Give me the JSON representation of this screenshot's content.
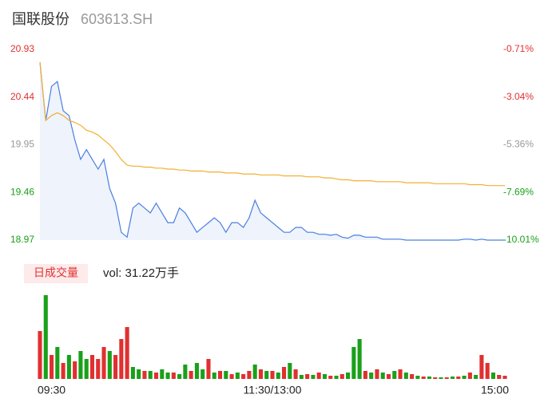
{
  "header": {
    "title": "国联股份",
    "code": "603613.SH"
  },
  "chart_data": [
    {
      "type": "line",
      "xlim": [
        0,
        80
      ],
      "xticks": [
        {
          "value": 0,
          "label": "09:30"
        },
        {
          "value": 40,
          "label": "11:30/13:00"
        },
        {
          "value": 80,
          "label": "15:00"
        }
      ],
      "ylim": [
        18.97,
        20.93
      ],
      "yticks": [
        20.93,
        20.44,
        19.95,
        19.46,
        18.97
      ],
      "y2lim": [
        -10.01,
        -0.71
      ],
      "y2ticks": [
        {
          "value": -0.71,
          "label": "-0.71%"
        },
        {
          "value": -3.04,
          "label": "-3.04%"
        },
        {
          "value": -5.36,
          "label": "-5.36%"
        },
        {
          "value": -7.69,
          "label": "-7.69%"
        },
        {
          "value": -10.01,
          "label": "-10.01%"
        }
      ],
      "tick_colors": [
        "#e03030",
        "#e03030",
        "#999999",
        "#1aa01a",
        "#1aa01a"
      ],
      "series": [
        {
          "color": "#4a7fe0",
          "area": true,
          "values": [
            20.8,
            20.2,
            20.55,
            20.6,
            20.3,
            20.25,
            20.0,
            19.8,
            19.9,
            19.8,
            19.7,
            19.8,
            19.5,
            19.35,
            19.05,
            19.0,
            19.3,
            19.35,
            19.3,
            19.25,
            19.35,
            19.25,
            19.15,
            19.15,
            19.3,
            19.25,
            19.15,
            19.05,
            19.1,
            19.15,
            19.2,
            19.15,
            19.05,
            19.15,
            19.15,
            19.1,
            19.2,
            19.38,
            19.25,
            19.2,
            19.15,
            19.1,
            19.05,
            19.05,
            19.1,
            19.1,
            19.05,
            19.05,
            19.03,
            19.03,
            19.02,
            19.03,
            19.0,
            18.99,
            19.02,
            19.02,
            19.0,
            19.0,
            19.0,
            18.98,
            18.98,
            18.98,
            18.98,
            18.97,
            18.97,
            18.97,
            18.97,
            18.97,
            18.97,
            18.97,
            18.97,
            18.97,
            18.97,
            18.98,
            18.98,
            18.97,
            18.98,
            18.97,
            18.97,
            18.97,
            18.97
          ]
        },
        {
          "color": "#f0b030",
          "values": [
            20.8,
            20.2,
            20.25,
            20.28,
            20.25,
            20.2,
            20.18,
            20.15,
            20.1,
            20.08,
            20.05,
            20.0,
            19.95,
            19.88,
            19.8,
            19.74,
            19.73,
            19.73,
            19.72,
            19.72,
            19.71,
            19.71,
            19.7,
            19.7,
            19.69,
            19.69,
            19.68,
            19.68,
            19.68,
            19.67,
            19.67,
            19.67,
            19.66,
            19.66,
            19.66,
            19.65,
            19.65,
            19.65,
            19.64,
            19.64,
            19.64,
            19.64,
            19.63,
            19.63,
            19.63,
            19.63,
            19.62,
            19.62,
            19.62,
            19.61,
            19.61,
            19.6,
            19.59,
            19.59,
            19.58,
            19.58,
            19.58,
            19.58,
            19.57,
            19.57,
            19.57,
            19.57,
            19.57,
            19.56,
            19.56,
            19.56,
            19.56,
            19.56,
            19.55,
            19.55,
            19.55,
            19.55,
            19.55,
            19.55,
            19.54,
            19.54,
            19.54,
            19.53,
            19.53,
            19.53,
            19.53
          ]
        }
      ]
    },
    {
      "type": "bar",
      "title": "日成交量",
      "subtitle": "vol: 31.22万手",
      "xlim": [
        0,
        80
      ],
      "ylim": [
        0,
        110
      ],
      "values": [
        60,
        105,
        30,
        40,
        20,
        30,
        22,
        35,
        25,
        30,
        25,
        40,
        35,
        30,
        50,
        65,
        15,
        12,
        10,
        10,
        8,
        12,
        8,
        8,
        6,
        18,
        10,
        20,
        12,
        25,
        8,
        10,
        10,
        6,
        8,
        6,
        10,
        18,
        12,
        10,
        10,
        8,
        15,
        20,
        12,
        5,
        6,
        5,
        8,
        6,
        4,
        4,
        6,
        8,
        40,
        50,
        10,
        8,
        12,
        8,
        6,
        10,
        12,
        8,
        6,
        4,
        3,
        3,
        2,
        2,
        2,
        3,
        3,
        4,
        8,
        5,
        30,
        20,
        8,
        5,
        4
      ],
      "colors": [
        "#e03030",
        "#1aa01a",
        "#e03030",
        "#1aa01a",
        "#e03030",
        "#1aa01a",
        "#e03030",
        "#1aa01a",
        "#1aa01a",
        "#e03030",
        "#e03030",
        "#e03030",
        "#1aa01a",
        "#e03030",
        "#e03030",
        "#e03030",
        "#1aa01a",
        "#1aa01a",
        "#e03030",
        "#1aa01a",
        "#e03030",
        "#1aa01a",
        "#1aa01a",
        "#e03030",
        "#1aa01a",
        "#1aa01a",
        "#e03030",
        "#1aa01a",
        "#1aa01a",
        "#e03030",
        "#1aa01a",
        "#e03030",
        "#1aa01a",
        "#e03030",
        "#1aa01a",
        "#e03030",
        "#e03030",
        "#1aa01a",
        "#e03030",
        "#1aa01a",
        "#e03030",
        "#1aa01a",
        "#e03030",
        "#1aa01a",
        "#e03030",
        "#1aa01a",
        "#e03030",
        "#1aa01a",
        "#e03030",
        "#1aa01a",
        "#e03030",
        "#1aa01a",
        "#e03030",
        "#1aa01a",
        "#1aa01a",
        "#1aa01a",
        "#e03030",
        "#1aa01a",
        "#e03030",
        "#1aa01a",
        "#e03030",
        "#1aa01a",
        "#e03030",
        "#1aa01a",
        "#e03030",
        "#1aa01a",
        "#e03030",
        "#1aa01a",
        "#e03030",
        "#1aa01a",
        "#e03030",
        "#1aa01a",
        "#e03030",
        "#1aa01a",
        "#e03030",
        "#1aa01a",
        "#e03030",
        "#e03030",
        "#1aa01a",
        "#e03030",
        "#e03030"
      ]
    }
  ]
}
